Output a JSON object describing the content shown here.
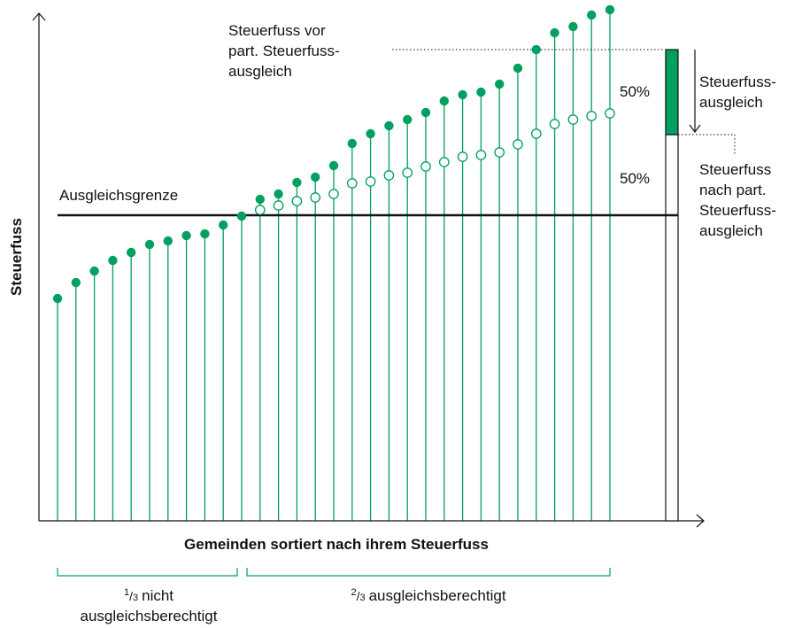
{
  "labels": {
    "y_axis": "Steuerfuss",
    "x_axis": "Gemeinden sortiert nach ihrem Steuerfuss",
    "threshold": "Ausgleichsgrenze",
    "before": [
      "Steuerfuss vor",
      "part. Steuerfuss-",
      "ausgleich"
    ],
    "after": [
      "Steuerfuss",
      "nach part.",
      "Steuerfuss-",
      "ausgleich"
    ],
    "compensation": [
      "Steuerfuss-",
      "ausgleich"
    ],
    "share_top": "50%",
    "share_bottom": "50%",
    "group_left": {
      "fraction_num": "1",
      "fraction_den": "3",
      "text": [
        "nicht",
        "ausgleichsberechtigt"
      ]
    },
    "group_right": {
      "fraction_num": "2",
      "fraction_den": "3",
      "text": "ausgleichsberechtigt"
    }
  }
}
